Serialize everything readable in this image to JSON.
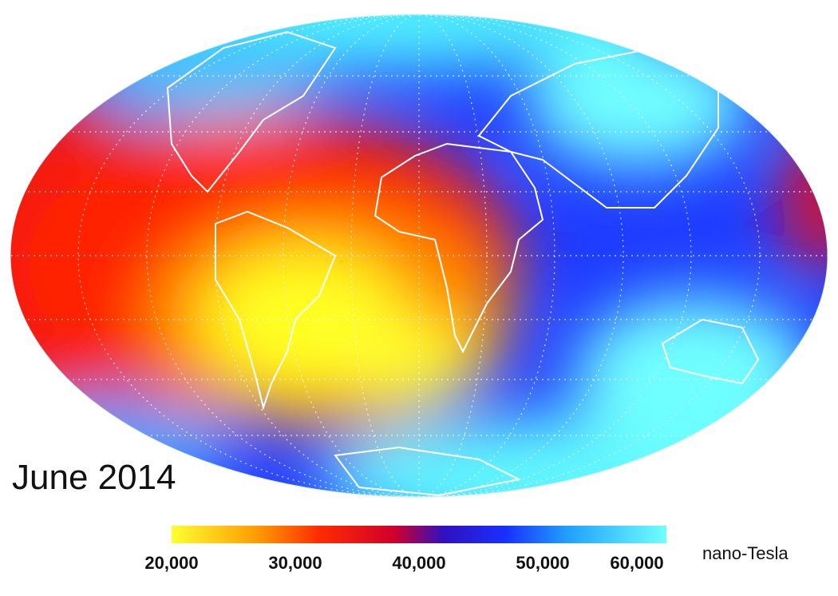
{
  "map": {
    "date_label": "June 2014",
    "colorbar": {
      "range": [
        20000,
        60000
      ],
      "stops": [
        {
          "value": 20000,
          "color": "#ffff30"
        },
        {
          "value": 27000,
          "color": "#ff9a00"
        },
        {
          "value": 32000,
          "color": "#ff2a00"
        },
        {
          "value": 38000,
          "color": "#d0002a"
        },
        {
          "value": 42000,
          "color": "#3010c0"
        },
        {
          "value": 47000,
          "color": "#1830ff"
        },
        {
          "value": 52000,
          "color": "#20a0ff"
        },
        {
          "value": 60000,
          "color": "#70ffff"
        }
      ],
      "ticks": [
        {
          "value": 20000,
          "label": "20,000"
        },
        {
          "value": 30000,
          "label": "30,000"
        },
        {
          "value": 40000,
          "label": "40,000"
        },
        {
          "value": 50000,
          "label": "50,000"
        },
        {
          "value": 60000,
          "label": "60,000"
        }
      ],
      "unit": "nano-Tesla"
    }
  }
}
